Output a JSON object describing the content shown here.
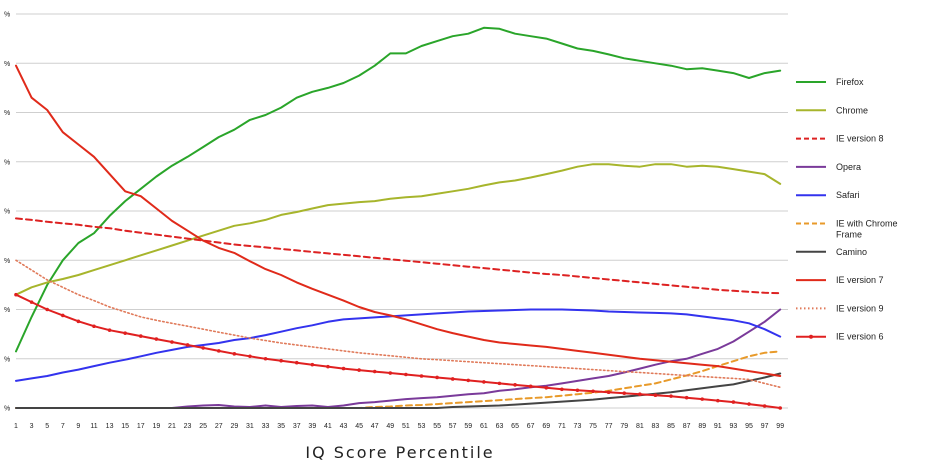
{
  "chart_data": {
    "type": "line",
    "title": "",
    "xlabel": "IQ Score Percentile",
    "ylabel": "",
    "x": [
      1,
      3,
      5,
      7,
      9,
      11,
      13,
      15,
      17,
      19,
      21,
      23,
      25,
      27,
      29,
      31,
      33,
      35,
      37,
      39,
      41,
      43,
      45,
      47,
      49,
      51,
      53,
      55,
      57,
      59,
      61,
      63,
      65,
      67,
      69,
      71,
      73,
      75,
      77,
      79,
      81,
      83,
      85,
      87,
      89,
      91,
      93,
      95,
      97,
      99
    ],
    "x_ticks": [
      1,
      3,
      5,
      7,
      9,
      11,
      13,
      15,
      17,
      19,
      21,
      23,
      25,
      27,
      29,
      31,
      33,
      35,
      37,
      39,
      41,
      43,
      45,
      47,
      49,
      51,
      53,
      55,
      57,
      59,
      61,
      63,
      65,
      67,
      69,
      71,
      73,
      75,
      77,
      79,
      81,
      83,
      85,
      87,
      89,
      91,
      93,
      95,
      97,
      99
    ],
    "x_range": [
      1,
      100
    ],
    "y_range": [
      0,
      8
    ],
    "y_tick_labels": [
      "%",
      "%",
      "%",
      "%",
      "%",
      "%",
      "%",
      "%",
      "%"
    ],
    "grid": "horizontal",
    "legend_position": "right",
    "series": [
      {
        "name": "Firefox",
        "color": "#2aa52a",
        "style": "solid",
        "values": [
          1.15,
          1.85,
          2.5,
          3.0,
          3.35,
          3.55,
          3.9,
          4.2,
          4.45,
          4.7,
          4.92,
          5.1,
          5.3,
          5.5,
          5.65,
          5.85,
          5.95,
          6.1,
          6.3,
          6.42,
          6.5,
          6.6,
          6.75,
          6.95,
          7.2,
          7.2,
          7.35,
          7.45,
          7.55,
          7.6,
          7.72,
          7.7,
          7.6,
          7.55,
          7.5,
          7.4,
          7.3,
          7.25,
          7.18,
          7.1,
          7.05,
          7.0,
          6.95,
          6.88,
          6.9,
          6.85,
          6.8,
          6.7,
          6.8,
          6.85
        ]
      },
      {
        "name": "Chrome",
        "color": "#a7b52c",
        "style": "solid",
        "values": [
          2.3,
          2.45,
          2.55,
          2.62,
          2.7,
          2.8,
          2.9,
          3.0,
          3.1,
          3.2,
          3.3,
          3.4,
          3.5,
          3.6,
          3.7,
          3.75,
          3.82,
          3.92,
          3.98,
          4.05,
          4.12,
          4.15,
          4.18,
          4.2,
          4.25,
          4.28,
          4.3,
          4.35,
          4.4,
          4.45,
          4.52,
          4.58,
          4.62,
          4.68,
          4.75,
          4.82,
          4.9,
          4.95,
          4.95,
          4.92,
          4.9,
          4.95,
          4.95,
          4.9,
          4.92,
          4.9,
          4.85,
          4.8,
          4.75,
          4.55
        ]
      },
      {
        "name": "IE version 8",
        "color": "#dd2222",
        "style": "dashed",
        "values": [
          3.85,
          3.82,
          3.78,
          3.75,
          3.72,
          3.68,
          3.65,
          3.6,
          3.56,
          3.52,
          3.48,
          3.44,
          3.4,
          3.36,
          3.32,
          3.29,
          3.26,
          3.23,
          3.2,
          3.17,
          3.14,
          3.11,
          3.08,
          3.05,
          3.02,
          2.99,
          2.96,
          2.93,
          2.9,
          2.87,
          2.84,
          2.81,
          2.78,
          2.75,
          2.72,
          2.7,
          2.67,
          2.64,
          2.61,
          2.58,
          2.55,
          2.52,
          2.49,
          2.46,
          2.43,
          2.4,
          2.38,
          2.36,
          2.34,
          2.33
        ]
      },
      {
        "name": "Opera",
        "color": "#7a3a9a",
        "style": "solid",
        "values": [
          0,
          0,
          0,
          0,
          0,
          0,
          0,
          0,
          0,
          0,
          0,
          0.03,
          0.05,
          0.06,
          0.03,
          0.02,
          0.05,
          0.02,
          0.04,
          0.05,
          0.02,
          0.05,
          0.1,
          0.12,
          0.15,
          0.18,
          0.2,
          0.22,
          0.25,
          0.28,
          0.3,
          0.35,
          0.38,
          0.42,
          0.45,
          0.5,
          0.55,
          0.6,
          0.65,
          0.72,
          0.8,
          0.88,
          0.95,
          1.0,
          1.1,
          1.2,
          1.35,
          1.55,
          1.75,
          2.0
        ]
      },
      {
        "name": "Safari",
        "color": "#3333ee",
        "style": "solid",
        "values": [
          0.55,
          0.6,
          0.65,
          0.72,
          0.78,
          0.85,
          0.92,
          0.98,
          1.05,
          1.12,
          1.18,
          1.24,
          1.28,
          1.32,
          1.38,
          1.42,
          1.48,
          1.55,
          1.62,
          1.68,
          1.75,
          1.8,
          1.82,
          1.84,
          1.86,
          1.88,
          1.9,
          1.92,
          1.94,
          1.96,
          1.97,
          1.98,
          1.99,
          2.0,
          2.0,
          2.0,
          1.99,
          1.98,
          1.96,
          1.95,
          1.94,
          1.93,
          1.92,
          1.9,
          1.86,
          1.82,
          1.78,
          1.72,
          1.6,
          1.45
        ]
      },
      {
        "name": "IE with Chrome Frame",
        "color": "#e89a2a",
        "style": "dashed",
        "values": [
          0,
          0,
          0,
          0,
          0,
          0,
          0,
          0,
          0,
          0,
          0,
          0,
          0,
          0,
          0,
          0,
          0,
          0,
          0,
          0,
          0,
          0,
          0,
          0.02,
          0.03,
          0.05,
          0.06,
          0.08,
          0.1,
          0.12,
          0.14,
          0.16,
          0.18,
          0.2,
          0.22,
          0.25,
          0.28,
          0.31,
          0.35,
          0.4,
          0.45,
          0.5,
          0.58,
          0.66,
          0.75,
          0.85,
          0.95,
          1.05,
          1.12,
          1.15
        ]
      },
      {
        "name": "Camino",
        "color": "#444444",
        "style": "solid",
        "values": [
          0,
          0,
          0,
          0,
          0,
          0,
          0,
          0,
          0,
          0,
          0,
          0,
          0,
          0,
          0,
          0,
          0,
          0,
          0,
          0,
          0,
          0,
          0,
          0,
          0,
          0,
          0,
          0,
          0.02,
          0.03,
          0.04,
          0.05,
          0.07,
          0.09,
          0.11,
          0.13,
          0.15,
          0.17,
          0.2,
          0.23,
          0.26,
          0.29,
          0.32,
          0.36,
          0.4,
          0.44,
          0.48,
          0.55,
          0.62,
          0.7
        ]
      },
      {
        "name": "IE version 7",
        "color": "#e02a1a",
        "style": "solid",
        "values": [
          6.95,
          6.3,
          6.05,
          5.6,
          5.35,
          5.1,
          4.75,
          4.4,
          4.3,
          4.05,
          3.8,
          3.6,
          3.4,
          3.25,
          3.15,
          2.98,
          2.82,
          2.7,
          2.55,
          2.42,
          2.3,
          2.18,
          2.05,
          1.95,
          1.88,
          1.8,
          1.7,
          1.6,
          1.52,
          1.45,
          1.38,
          1.33,
          1.3,
          1.27,
          1.24,
          1.2,
          1.16,
          1.12,
          1.08,
          1.04,
          1.0,
          0.97,
          0.94,
          0.91,
          0.88,
          0.85,
          0.8,
          0.75,
          0.7,
          0.65
        ]
      },
      {
        "name": "IE version 9",
        "color": "#e07a5a",
        "style": "dotted",
        "values": [
          3.0,
          2.8,
          2.6,
          2.45,
          2.3,
          2.18,
          2.05,
          1.95,
          1.85,
          1.78,
          1.72,
          1.66,
          1.6,
          1.54,
          1.48,
          1.42,
          1.37,
          1.32,
          1.28,
          1.24,
          1.2,
          1.16,
          1.12,
          1.09,
          1.06,
          1.03,
          1.0,
          0.98,
          0.96,
          0.94,
          0.92,
          0.9,
          0.88,
          0.86,
          0.84,
          0.82,
          0.8,
          0.78,
          0.76,
          0.74,
          0.72,
          0.7,
          0.68,
          0.66,
          0.64,
          0.62,
          0.6,
          0.58,
          0.5,
          0.42
        ]
      },
      {
        "name": "IE version 6",
        "color": "#e02020",
        "style": "marker",
        "values": [
          2.3,
          2.15,
          2.0,
          1.88,
          1.76,
          1.66,
          1.58,
          1.52,
          1.46,
          1.4,
          1.34,
          1.28,
          1.22,
          1.16,
          1.1,
          1.05,
          1.0,
          0.96,
          0.92,
          0.88,
          0.84,
          0.8,
          0.77,
          0.74,
          0.71,
          0.68,
          0.65,
          0.62,
          0.59,
          0.56,
          0.53,
          0.5,
          0.47,
          0.44,
          0.41,
          0.38,
          0.36,
          0.34,
          0.32,
          0.3,
          0.28,
          0.26,
          0.24,
          0.21,
          0.18,
          0.15,
          0.12,
          0.08,
          0.04,
          0.0
        ]
      }
    ]
  }
}
